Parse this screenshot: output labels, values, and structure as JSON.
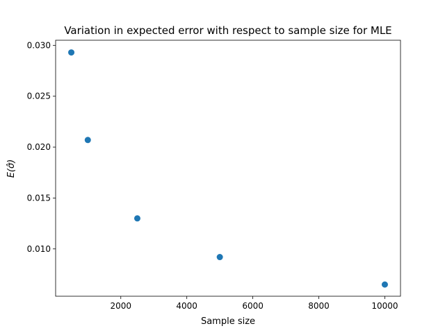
{
  "chart_data": {
    "type": "scatter",
    "title": "Variation in expected error with respect to sample size for MLE",
    "xlabel": "Sample size",
    "ylabel": "E(σ̂)",
    "xlim": [
      25,
      10475
    ],
    "ylim": [
      0.00535,
      0.0305
    ],
    "xticks": [
      2000,
      4000,
      6000,
      8000,
      10000
    ],
    "xtick_labels": [
      "2000",
      "4000",
      "6000",
      "8000",
      "10000"
    ],
    "yticks": [
      0.01,
      0.015,
      0.02,
      0.025,
      0.03
    ],
    "ytick_labels": [
      "0.010",
      "0.015",
      "0.020",
      "0.025",
      "0.030"
    ],
    "grid": false,
    "legend": "none",
    "series": [
      {
        "color": "#1f77b4",
        "x": [
          500,
          1000,
          2500,
          5000,
          10000
        ],
        "y": [
          0.0293,
          0.0207,
          0.013,
          0.0092,
          0.0065
        ]
      }
    ]
  }
}
